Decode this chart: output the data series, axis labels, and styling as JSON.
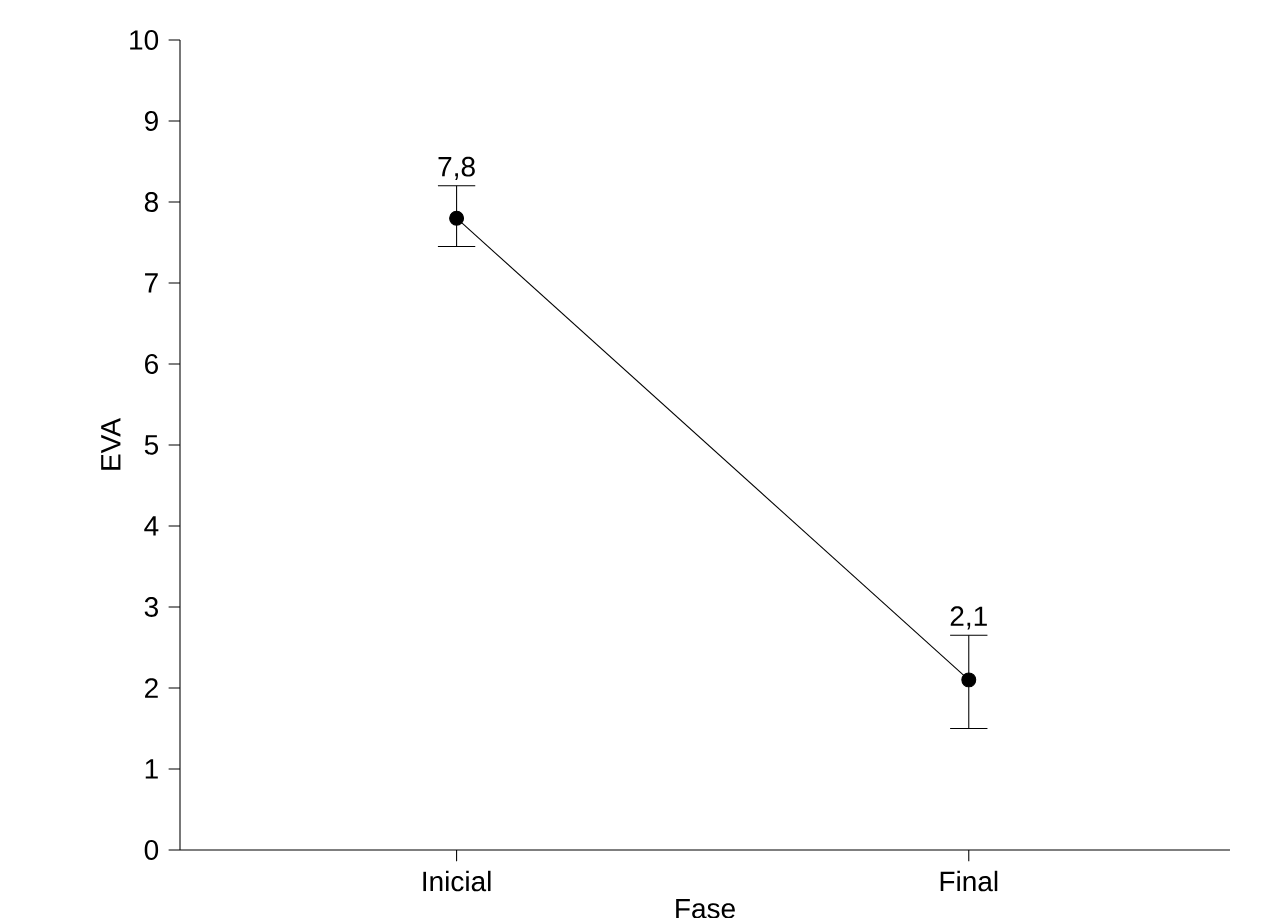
{
  "chart_data": {
    "type": "line",
    "xlabel": "Fase",
    "ylabel": "EVA",
    "categories": [
      "Inicial",
      "Final"
    ],
    "values": [
      7.8,
      2.1
    ],
    "value_labels": [
      "7,8",
      "2,1"
    ],
    "errors": [
      [
        7.45,
        8.2
      ],
      [
        1.5,
        2.65
      ]
    ],
    "color": "#000000",
    "marker": "circle",
    "line_style": "solid",
    "ylim": [
      0,
      10
    ],
    "yticks": [
      0,
      1,
      2,
      3,
      4,
      5,
      6,
      7,
      8,
      9,
      10
    ]
  }
}
